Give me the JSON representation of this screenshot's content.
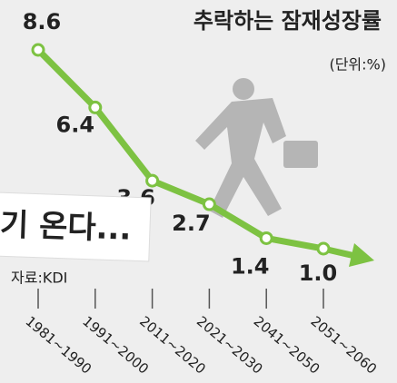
{
  "chart_data": {
    "type": "line",
    "title": "추락하는 잠재성장률",
    "subtitle": "(단위:%)",
    "source": "자료:KDI",
    "annotation": "기 온다...",
    "categories": [
      "1981~1990",
      "1991~2000",
      "2011~2020",
      "2021~2030",
      "2041~2050",
      "2051~2060"
    ],
    "series": [
      {
        "name": "잠재성장률",
        "color": "#7dc242",
        "values": [
          8.6,
          6.4,
          3.6,
          2.7,
          1.4,
          1.0
        ],
        "value_labels": [
          "8.6",
          "6.4",
          "3.6",
          "2.7",
          "1.4",
          "1.0"
        ]
      }
    ]
  }
}
